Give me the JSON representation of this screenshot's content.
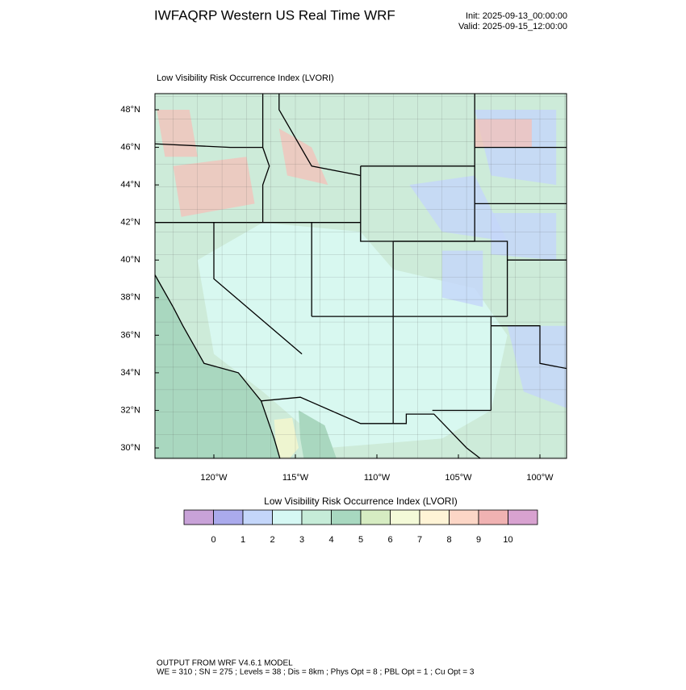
{
  "header": {
    "title": "IWFAQRP Western US Real Time WRF",
    "init": "Init: 2025-09-13_00:00:00",
    "valid": "Valid: 2025-09-15_12:00:00"
  },
  "map": {
    "subtitle": "Low Visibility Risk Occurrence Index   (LVORI)",
    "lat_ticks": [
      {
        "value": 48,
        "label": "48°N"
      },
      {
        "value": 46,
        "label": "46°N"
      },
      {
        "value": 44,
        "label": "44°N"
      },
      {
        "value": 42,
        "label": "42°N"
      },
      {
        "value": 40,
        "label": "40°N"
      },
      {
        "value": 38,
        "label": "38°N"
      },
      {
        "value": 36,
        "label": "36°N"
      },
      {
        "value": 34,
        "label": "34°N"
      },
      {
        "value": 32,
        "label": "32°N"
      },
      {
        "value": 30,
        "label": "30°N"
      }
    ],
    "lon_ticks": [
      {
        "value": -120,
        "label": "120°W"
      },
      {
        "value": -115,
        "label": "115°W"
      },
      {
        "value": -110,
        "label": "110°W"
      },
      {
        "value": -105,
        "label": "105°W"
      },
      {
        "value": -100,
        "label": "100°W"
      }
    ]
  },
  "colorbar": {
    "title": "Low Visibility Risk Occurrence Index  (LVORI)",
    "levels": [
      0,
      1,
      2,
      3,
      4,
      5,
      6,
      7,
      8,
      9,
      10
    ],
    "colors": [
      "#c8a2d8",
      "#aaaaec",
      "#c4d6fa",
      "#d6f8f4",
      "#c6ecd8",
      "#a8d8c0",
      "#d6ecc2",
      "#f4fad8",
      "#fff4d6",
      "#fcd6c6",
      "#f0b2b2",
      "#d8a2d0"
    ]
  },
  "footer": {
    "line1": "OUTPUT FROM WRF V4.6.1 MODEL",
    "line2": "WE = 310 ; SN = 275 ; Levels = 38 ; Dis = 8km ; Phys Opt = 8 ; PBL Opt = 1 ; Cu Opt = 3"
  }
}
